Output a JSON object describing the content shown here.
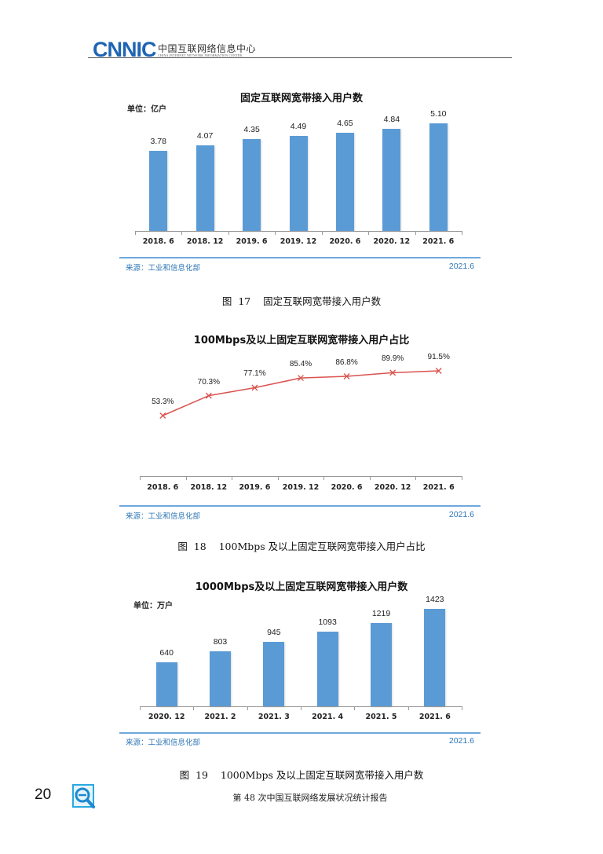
{
  "header": {
    "logo_text": "CNNIC",
    "org_name_cn": "中国互联网络信息中心",
    "org_name_en": "CHINA INTERNET NETWORK INFORMATION CENTER"
  },
  "figures": [
    {
      "title": "固定互联网宽带接入用户数",
      "unit": "单位：亿户",
      "source": "来源：工业和信息化部",
      "source_date": "2021.6",
      "caption": "图  17    固定互联网宽带接入用户数",
      "value_labels": [
        "3.78",
        "4.07",
        "4.35",
        "4.49",
        "4.65",
        "4.84",
        "5.10"
      ],
      "categories": [
        "2018. 6",
        "2018. 12",
        "2019. 6",
        "2019. 12",
        "2020. 6",
        "2020. 12",
        "2021. 6"
      ]
    },
    {
      "title": "100Mbps及以上固定互联网宽带接入用户占比",
      "source": "来源：工业和信息化部",
      "source_date": "2021.6",
      "caption": "图  18    100Mbps 及以上固定互联网宽带接入用户占比",
      "value_labels": [
        "53.3%",
        "70.3%",
        "77.1%",
        "85.4%",
        "86.8%",
        "89.9%",
        "91.5%"
      ],
      "categories": [
        "2018. 6",
        "2018. 12",
        "2019. 6",
        "2019. 12",
        "2020. 6",
        "2020. 12",
        "2021. 6"
      ]
    },
    {
      "title": "1000Mbps及以上固定互联网宽带接入用户数",
      "unit": "单位：万户",
      "source": "来源：工业和信息化部",
      "source_date": "2021.6",
      "caption": "图  19    1000Mbps 及以上固定互联网宽带接入用户数",
      "value_labels": [
        "640",
        "803",
        "945",
        "1093",
        "1219",
        "1423"
      ],
      "categories": [
        "2020. 12",
        "2021. 2",
        "2021. 3",
        "2021. 4",
        "2021. 5",
        "2021. 6"
      ]
    }
  ],
  "footer": {
    "page_number": "20",
    "report_title": "第 48 次中国互联网络发展状况统计报告"
  },
  "colors": {
    "bar": "#5b9bd5",
    "line": "#d9534f",
    "source_text": "#2e75b6",
    "logo": "#1f64b5"
  },
  "chart_data": [
    {
      "type": "bar",
      "title": "固定互联网宽带接入用户数",
      "ylabel": "单位：亿户",
      "categories": [
        "2018.6",
        "2018.12",
        "2019.6",
        "2019.12",
        "2020.6",
        "2020.12",
        "2021.6"
      ],
      "values": [
        3.78,
        4.07,
        4.35,
        4.49,
        4.65,
        4.84,
        5.1
      ],
      "grid": false,
      "legend": "none",
      "source": "来源：工业和信息化部  2021.6"
    },
    {
      "type": "line",
      "title": "100Mbps及以上固定互联网宽带接入用户占比",
      "categories": [
        "2018.6",
        "2018.12",
        "2019.6",
        "2019.12",
        "2020.6",
        "2020.12",
        "2021.6"
      ],
      "values": [
        53.3,
        70.3,
        77.1,
        85.4,
        86.8,
        89.9,
        91.5
      ],
      "unit": "%",
      "marker": "x",
      "grid": false,
      "legend": "none",
      "source": "来源：工业和信息化部  2021.6"
    },
    {
      "type": "bar",
      "title": "1000Mbps及以上固定互联网宽带接入用户数",
      "ylabel": "单位：万户",
      "categories": [
        "2020.12",
        "2021.2",
        "2021.3",
        "2021.4",
        "2021.5",
        "2021.6"
      ],
      "values": [
        640,
        803,
        945,
        1093,
        1219,
        1423
      ],
      "grid": false,
      "legend": "none",
      "source": "来源：工业和信息化部  2021.6"
    }
  ]
}
